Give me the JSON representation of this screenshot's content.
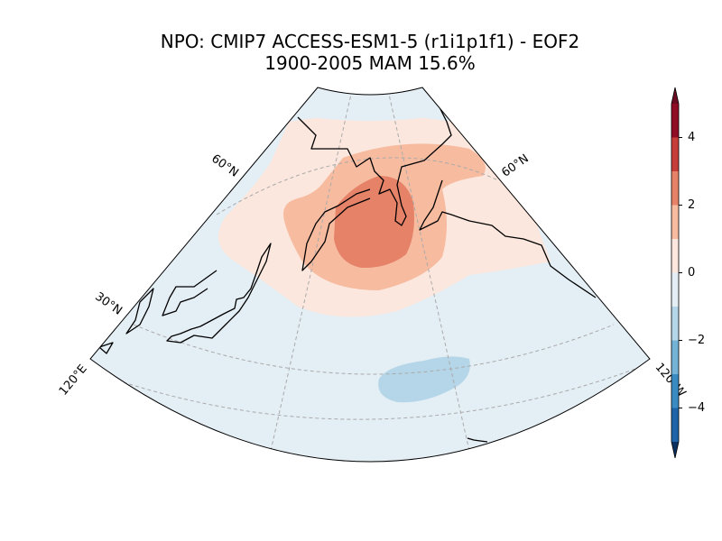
{
  "title": "NPO: CMIP7 ACCESS-ESM1-5 (r1i1p1f1) - EOF2",
  "subtitle": "1900-2005 MAM 15.6%",
  "map": {
    "gridline_labels": [
      "60°N",
      "60°N",
      "30°N",
      "120°E",
      "120°W"
    ]
  },
  "colorbar": {
    "levels": [
      -5,
      -4,
      -3,
      -2,
      -1,
      0,
      1,
      2,
      3,
      4,
      5
    ],
    "colors": [
      "#1f63a8",
      "#3a8bc2",
      "#74b3d6",
      "#b5d6e8",
      "#e4eef5",
      "#fbe7dd",
      "#f7bba0",
      "#e58268",
      "#c53e3a",
      "#8f0c25"
    ],
    "extend_colors": [
      "#0b2f5f",
      "#6a0c22"
    ],
    "ticks": [
      {
        "value": -4,
        "label": "−4"
      },
      {
        "value": -2,
        "label": "−2"
      },
      0,
      2,
      4
    ]
  }
}
